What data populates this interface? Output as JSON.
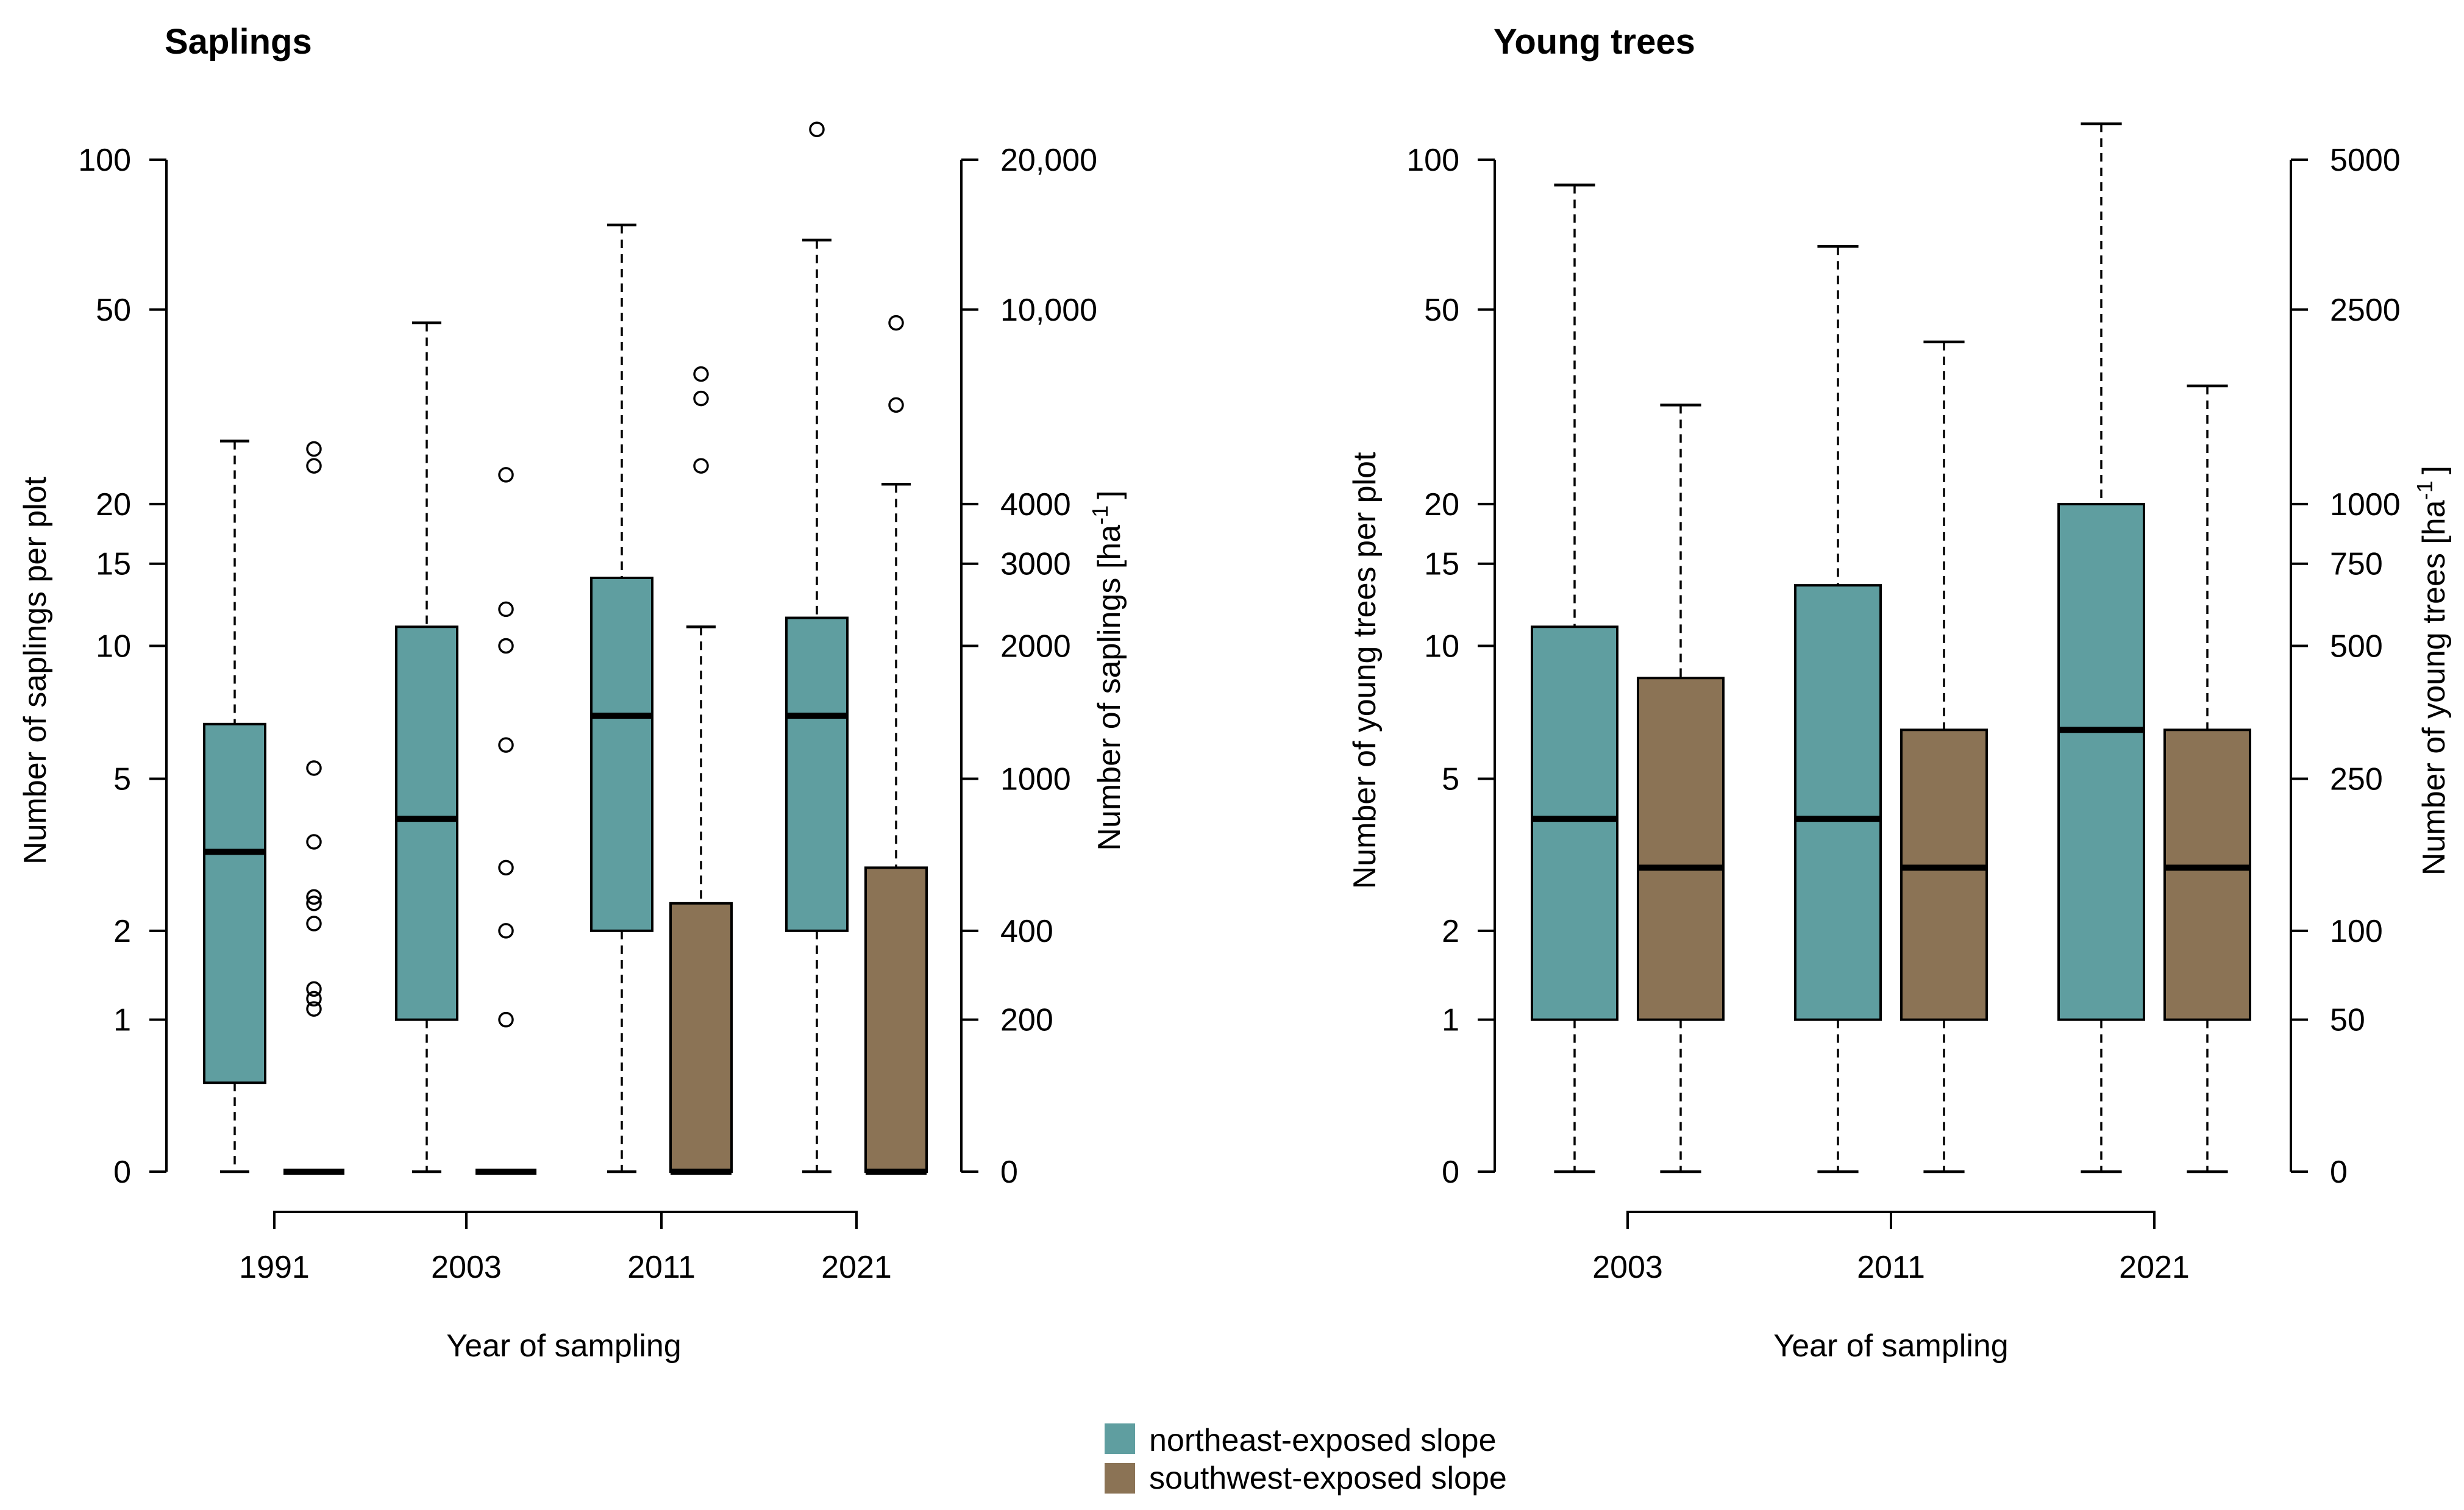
{
  "legend": {
    "items": [
      {
        "label": "northeast-exposed slope",
        "color": "#5f9ea0"
      },
      {
        "label": "southwest-exposed slope",
        "color": "#8b7355"
      }
    ]
  },
  "chart_data": [
    {
      "type": "boxplot",
      "title": "Saplings",
      "xlabel": "Year of sampling",
      "ylabel": "Number of saplings per plot",
      "ylabel_right": "Number of saplings [ha",
      "ylabel_right_sup": "-1",
      "ylabel_right_close": "]",
      "y_scale": "log(y+1)",
      "ylim": [
        0,
        100
      ],
      "left_ticks": [
        "0",
        "1",
        "2",
        "5",
        "10",
        "15",
        "20",
        "50",
        "100"
      ],
      "right_ticks": [
        "0",
        "200",
        "400",
        "1000",
        "2000",
        "3000",
        "4000",
        "10,000",
        "20,000"
      ],
      "categories": [
        "1991",
        "2003",
        "2011",
        "2021"
      ],
      "series": [
        {
          "name": "northeast-exposed slope",
          "boxes": [
            {
              "min": 0,
              "q1": 0.5,
              "median": 3.3,
              "q3": 6.7,
              "max": 27,
              "outliers": []
            },
            {
              "min": 0,
              "q1": 1,
              "median": 4,
              "q3": 11,
              "max": 47,
              "outliers": []
            },
            {
              "min": 0,
              "q1": 2,
              "median": 7,
              "q3": 14,
              "max": 74,
              "outliers": []
            },
            {
              "min": 0,
              "q1": 2,
              "median": 7,
              "q3": 11.5,
              "max": 69,
              "outliers": [
                115
              ]
            }
          ]
        },
        {
          "name": "southwest-exposed slope",
          "boxes": [
            {
              "min": 0,
              "q1": 0,
              "median": 0,
              "q3": 0,
              "max": 0,
              "outliers": [
                1.1,
                1.2,
                1.3,
                2.1,
                2.4,
                2.5,
                3.5,
                5.3,
                24,
                26
              ]
            },
            {
              "min": 0,
              "q1": 0,
              "median": 0,
              "q3": 0,
              "max": 0,
              "outliers": [
                1,
                2,
                3,
                6,
                10,
                12,
                23
              ]
            },
            {
              "min": 0,
              "q1": 0,
              "median": 0,
              "q3": 2.4,
              "max": 11,
              "outliers": [
                24,
                33,
                37
              ]
            },
            {
              "min": 0,
              "q1": 0,
              "median": 0,
              "q3": 3,
              "max": 22,
              "outliers": [
                32,
                47
              ]
            }
          ]
        }
      ]
    },
    {
      "type": "boxplot",
      "title": "Young trees",
      "xlabel": "Year of sampling",
      "ylabel": "Number of young trees per plot",
      "ylabel_right": "Number of young trees [ha",
      "ylabel_right_sup": "-1",
      "ylabel_right_close": "]",
      "y_scale": "log(y+1)",
      "ylim": [
        0,
        100
      ],
      "left_ticks": [
        "0",
        "1",
        "2",
        "5",
        "10",
        "15",
        "20",
        "50",
        "100"
      ],
      "right_ticks": [
        "0",
        "50",
        "100",
        "250",
        "500",
        "750",
        "1000",
        "2500",
        "5000"
      ],
      "categories": [
        "2003",
        "2011",
        "2021"
      ],
      "series": [
        {
          "name": "northeast-exposed slope",
          "boxes": [
            {
              "min": 0,
              "q1": 1,
              "median": 4,
              "q3": 11,
              "max": 89,
              "outliers": []
            },
            {
              "min": 0,
              "q1": 1,
              "median": 4,
              "q3": 13.5,
              "max": 67,
              "outliers": []
            },
            {
              "min": 0,
              "q1": 1,
              "median": 6.5,
              "q3": 20,
              "max": 118,
              "outliers": []
            }
          ]
        },
        {
          "name": "southwest-exposed slope",
          "boxes": [
            {
              "min": 0,
              "q1": 1,
              "median": 3,
              "q3": 8.5,
              "max": 32,
              "outliers": []
            },
            {
              "min": 0,
              "q1": 1,
              "median": 3,
              "q3": 6.5,
              "max": 43,
              "outliers": []
            },
            {
              "min": 0,
              "q1": 1,
              "median": 3,
              "q3": 6.5,
              "max": 35,
              "outliers": []
            }
          ]
        }
      ]
    }
  ]
}
